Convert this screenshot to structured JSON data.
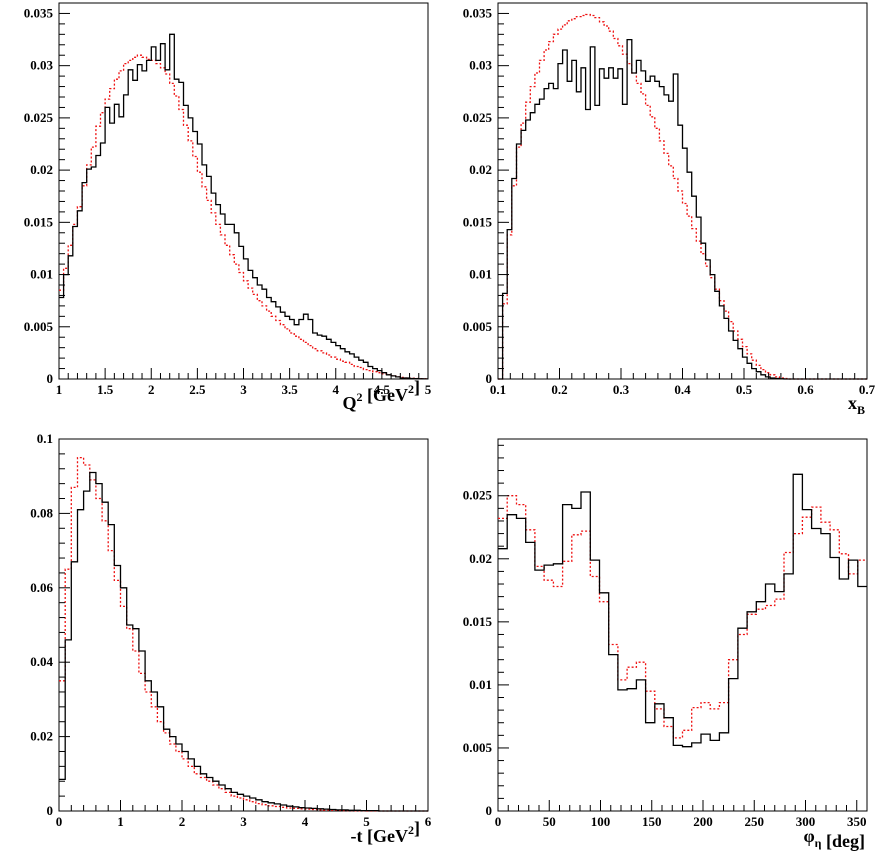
{
  "colors": {
    "data": "#000000",
    "sim": "#ee1111",
    "axis": "#000000"
  },
  "chart_data": [
    {
      "type": "line",
      "xlabel_parts": [
        {
          "t": "Q"
        },
        {
          "t": "2",
          "sup": true
        },
        {
          "t": " [GeV"
        },
        {
          "t": "2",
          "sup": true
        },
        {
          "t": "]"
        }
      ],
      "xlim": [
        1,
        5
      ],
      "ylim": [
        0,
        0.036
      ],
      "xticks": [
        1,
        1.5,
        2,
        2.5,
        3,
        3.5,
        4,
        4.5,
        5
      ],
      "xtick_labels": [
        "1",
        "1.5",
        "2",
        "2.5",
        "3",
        "3.5",
        "4",
        "4.5",
        "5"
      ],
      "yticks": [
        0,
        0.005,
        0.01,
        0.015,
        0.02,
        0.025,
        0.03,
        0.035
      ],
      "ytick_labels": [
        "0",
        "0.005",
        "0.01",
        "0.015",
        "0.02",
        "0.025",
        "0.03",
        "0.035"
      ],
      "bin_edges_start": 1,
      "bin_width": 0.05,
      "series": [
        {
          "style": "solid",
          "color": "#000000",
          "values": [
            0.0078,
            0.01,
            0.0118,
            0.0146,
            0.0161,
            0.0188,
            0.0201,
            0.0203,
            0.0214,
            0.0226,
            0.026,
            0.0245,
            0.0263,
            0.0251,
            0.0272,
            0.0296,
            0.0286,
            0.0301,
            0.0295,
            0.0305,
            0.0318,
            0.0305,
            0.0321,
            0.0296,
            0.033,
            0.0287,
            0.0284,
            0.0262,
            0.025,
            0.0237,
            0.0225,
            0.0205,
            0.0194,
            0.0178,
            0.0167,
            0.0158,
            0.0148,
            0.0148,
            0.014,
            0.0127,
            0.0115,
            0.0104,
            0.0097,
            0.009,
            0.0086,
            0.0078,
            0.0074,
            0.0069,
            0.0064,
            0.006,
            0.0057,
            0.0052,
            0.0057,
            0.0062,
            0.0057,
            0.0044,
            0.0042,
            0.0041,
            0.0038,
            0.0035,
            0.0032,
            0.0029,
            0.0026,
            0.0024,
            0.0021,
            0.0018,
            0.0016,
            0.0012,
            0.001,
            0.0008,
            0.0006,
            0.0004,
            0.0003,
            0.0002,
            0.0001,
            0.0001,
            5e-05,
            3e-05,
            2e-05,
            1e-05
          ]
        },
        {
          "style": "dotted",
          "color": "#ee1111",
          "values": [
            0.0085,
            0.0106,
            0.0128,
            0.0148,
            0.0165,
            0.0185,
            0.0205,
            0.0222,
            0.0242,
            0.0255,
            0.0268,
            0.0278,
            0.0287,
            0.0295,
            0.0302,
            0.0305,
            0.0308,
            0.031,
            0.0308,
            0.0306,
            0.0305,
            0.0302,
            0.0298,
            0.0292,
            0.0283,
            0.0271,
            0.0258,
            0.0243,
            0.0228,
            0.0213,
            0.0198,
            0.0184,
            0.0171,
            0.0159,
            0.0148,
            0.0138,
            0.0128,
            0.0119,
            0.011,
            0.0102,
            0.0094,
            0.0087,
            0.0081,
            0.0075,
            0.007,
            0.0065,
            0.006,
            0.0056,
            0.0052,
            0.0048,
            0.0044,
            0.0041,
            0.0038,
            0.0035,
            0.0032,
            0.0029,
            0.0027,
            0.0025,
            0.0023,
            0.0021,
            0.0019,
            0.0017,
            0.0016,
            0.0014,
            0.0012,
            0.0011,
            0.0009,
            0.0008,
            0.0007,
            0.0006,
            0.0005,
            0.0004,
            0.0003,
            0.0002,
            0.00015,
            0.0001,
            7e-05,
            5e-05,
            3e-05,
            2e-05
          ]
        }
      ]
    },
    {
      "type": "line",
      "xlabel_parts": [
        {
          "t": "x"
        },
        {
          "t": "B",
          "sub": true
        }
      ],
      "xlim": [
        0.1,
        0.7
      ],
      "ylim": [
        0,
        0.036
      ],
      "xticks": [
        0.1,
        0.2,
        0.3,
        0.4,
        0.5,
        0.6,
        0.7
      ],
      "xtick_labels": [
        "0.1",
        "0.2",
        "0.3",
        "0.4",
        "0.5",
        "0.6",
        "0.7"
      ],
      "yticks": [
        0,
        0.005,
        0.01,
        0.015,
        0.02,
        0.025,
        0.03,
        0.035
      ],
      "ytick_labels": [
        "0",
        "0.005",
        "0.01",
        "0.015",
        "0.02",
        "0.025",
        "0.03",
        "0.035"
      ],
      "bin_edges_start": 0.1,
      "bin_width": 0.0075,
      "series": [
        {
          "style": "solid",
          "color": "#000000",
          "values": [
            0,
            0.0082,
            0.0143,
            0.0192,
            0.0225,
            0.0238,
            0.0248,
            0.0255,
            0.0263,
            0.0268,
            0.0278,
            0.0283,
            0.0278,
            0.0302,
            0.0315,
            0.0285,
            0.0305,
            0.0275,
            0.0298,
            0.0258,
            0.0318,
            0.0262,
            0.0297,
            0.0288,
            0.0298,
            0.0288,
            0.0297,
            0.0263,
            0.0325,
            0.0293,
            0.0305,
            0.0295,
            0.0285,
            0.029,
            0.0285,
            0.028,
            0.0272,
            0.0266,
            0.0292,
            0.0243,
            0.0221,
            0.0198,
            0.0175,
            0.0155,
            0.013,
            0.0114,
            0.01,
            0.0084,
            0.007,
            0.0058,
            0.0046,
            0.0037,
            0.0029,
            0.0021,
            0.0015,
            0.001,
            0.0007,
            0.0004,
            0.0002,
            0.0001,
            5e-05,
            2e-05,
            0,
            0,
            0,
            0,
            0,
            0,
            0,
            0,
            0,
            0,
            0,
            0,
            0,
            0,
            0,
            0,
            0,
            0
          ]
        },
        {
          "style": "dotted",
          "color": "#ee1111",
          "values": [
            0,
            0.0072,
            0.0138,
            0.0185,
            0.0222,
            0.0245,
            0.0265,
            0.028,
            0.0293,
            0.0305,
            0.0315,
            0.0323,
            0.033,
            0.0335,
            0.0339,
            0.0343,
            0.0345,
            0.0347,
            0.0348,
            0.0349,
            0.0348,
            0.0346,
            0.0342,
            0.0338,
            0.0333,
            0.0326,
            0.0319,
            0.0311,
            0.0302,
            0.0293,
            0.0283,
            0.0273,
            0.0262,
            0.0251,
            0.024,
            0.0228,
            0.0216,
            0.0204,
            0.0192,
            0.018,
            0.0168,
            0.0156,
            0.0144,
            0.0132,
            0.012,
            0.0108,
            0.0097,
            0.0086,
            0.0075,
            0.0065,
            0.0055,
            0.0046,
            0.0038,
            0.0031,
            0.0024,
            0.0018,
            0.0013,
            0.0009,
            0.0006,
            0.0004,
            0.0002,
            0.0001,
            5e-05,
            0,
            0,
            0,
            0,
            0,
            0,
            0,
            0,
            0,
            0,
            0,
            0,
            0,
            0,
            0,
            0,
            0
          ]
        }
      ]
    },
    {
      "type": "line",
      "xlabel_parts": [
        {
          "t": "-t [GeV"
        },
        {
          "t": "2",
          "sup": true
        },
        {
          "t": "]"
        }
      ],
      "xlim": [
        0,
        6
      ],
      "ylim": [
        0,
        0.1
      ],
      "xticks": [
        0,
        1,
        2,
        3,
        4,
        5,
        6
      ],
      "xtick_labels": [
        "0",
        "1",
        "2",
        "3",
        "4",
        "5",
        "6"
      ],
      "yticks": [
        0,
        0.02,
        0.04,
        0.06,
        0.08,
        0.1
      ],
      "ytick_labels": [
        "0",
        "0.02",
        "0.04",
        "0.06",
        "0.08",
        "0.1"
      ],
      "bin_edges_start": 0,
      "bin_width": 0.1,
      "series": [
        {
          "style": "solid",
          "color": "#000000",
          "values": [
            0.0085,
            0.046,
            0.067,
            0.081,
            0.086,
            0.091,
            0.088,
            0.083,
            0.077,
            0.066,
            0.06,
            0.05,
            0.049,
            0.043,
            0.035,
            0.032,
            0.028,
            0.022,
            0.02,
            0.018,
            0.016,
            0.014,
            0.012,
            0.01,
            0.009,
            0.008,
            0.007,
            0.006,
            0.005,
            0.0045,
            0.004,
            0.0035,
            0.003,
            0.0025,
            0.0022,
            0.0019,
            0.0016,
            0.0013,
            0.0011,
            0.0009,
            0.0008,
            0.0007,
            0.0006,
            0.0005,
            0.0004,
            0.0003,
            0.0003,
            0.0002,
            0.0002,
            0.0001,
            0.0001,
            0.0001,
            0,
            0,
            0,
            0,
            0,
            0,
            0,
            0
          ]
        },
        {
          "style": "dotted",
          "color": "#ee1111",
          "values": [
            0.035,
            0.065,
            0.087,
            0.095,
            0.093,
            0.089,
            0.084,
            0.078,
            0.07,
            0.062,
            0.055,
            0.049,
            0.043,
            0.037,
            0.032,
            0.028,
            0.024,
            0.021,
            0.018,
            0.016,
            0.014,
            0.012,
            0.01,
            0.009,
            0.008,
            0.007,
            0.006,
            0.005,
            0.004,
            0.0035,
            0.003,
            0.0025,
            0.002,
            0.0017,
            0.0014,
            0.0012,
            0.001,
            0.0008,
            0.0007,
            0.0006,
            0.0005,
            0.0004,
            0.0003,
            0.00025,
            0.0002,
            0.00015,
            0.0001,
            0.0001,
            5e-05,
            5e-05,
            0,
            0,
            0,
            0,
            0,
            0,
            0,
            0,
            0,
            0
          ]
        }
      ]
    },
    {
      "type": "line",
      "xlabel_parts": [
        {
          "t": "φ"
        },
        {
          "t": "η",
          "sub": true
        },
        {
          "t": " [deg]"
        }
      ],
      "xlim": [
        0,
        360
      ],
      "ylim": [
        0,
        0.0295
      ],
      "xticks": [
        0,
        50,
        100,
        150,
        200,
        250,
        300,
        350
      ],
      "xtick_labels": [
        "0",
        "50",
        "100",
        "150",
        "200",
        "250",
        "300",
        "350"
      ],
      "yticks": [
        0,
        0.005,
        0.01,
        0.015,
        0.02,
        0.025
      ],
      "ytick_labels": [
        "0",
        "0.005",
        "0.01",
        "0.015",
        "0.02",
        "0.025"
      ],
      "bin_edges_start": 0,
      "bin_width": 9,
      "series": [
        {
          "style": "solid",
          "color": "#000000",
          "values": [
            0.0208,
            0.0235,
            0.0232,
            0.0213,
            0.0191,
            0.0195,
            0.0196,
            0.0243,
            0.024,
            0.0253,
            0.0199,
            0.0173,
            0.0124,
            0.0096,
            0.0097,
            0.0104,
            0.007,
            0.0085,
            0.0074,
            0.0052,
            0.0051,
            0.0054,
            0.0061,
            0.0056,
            0.0062,
            0.0105,
            0.0145,
            0.0158,
            0.0166,
            0.018,
            0.0174,
            0.0188,
            0.0267,
            0.0239,
            0.0224,
            0.022,
            0.0201,
            0.0184,
            0.0199,
            0.0178
          ]
        },
        {
          "style": "dotted",
          "color": "#ee1111",
          "values": [
            0.0232,
            0.025,
            0.0243,
            0.0223,
            0.0194,
            0.0183,
            0.0178,
            0.0198,
            0.0219,
            0.0222,
            0.0186,
            0.0166,
            0.0132,
            0.0104,
            0.0114,
            0.0118,
            0.0095,
            0.0081,
            0.0067,
            0.0058,
            0.0064,
            0.0082,
            0.0086,
            0.0081,
            0.0086,
            0.012,
            0.014,
            0.0156,
            0.016,
            0.0163,
            0.0168,
            0.0205,
            0.022,
            0.0233,
            0.0241,
            0.0229,
            0.0223,
            0.0204,
            0.0188,
            0.0199
          ]
        }
      ]
    }
  ]
}
